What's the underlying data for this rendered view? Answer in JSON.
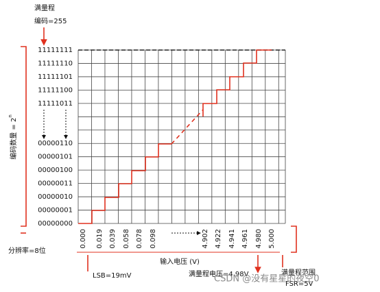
{
  "full_scale": {
    "title": "满量程",
    "code": "编码=255"
  },
  "y_codes_top": [
    "11111111",
    "11111110",
    "11111101",
    "11111100",
    "11111011"
  ],
  "y_codes_bottom": [
    "00000110",
    "00000101",
    "00000100",
    "00000011",
    "00000010",
    "00000001",
    "00000000"
  ],
  "code_count": {
    "label": "编码数量 = 2",
    "exponent": "n"
  },
  "resolution": "分辨率=8位",
  "x_voltages_left": [
    "0.000",
    "0.019",
    "0.039",
    "0.058",
    "0.078",
    "0.098"
  ],
  "x_voltages_right": [
    "4.902",
    "4.922",
    "4.941",
    "4.961",
    "4.980",
    "5.000"
  ],
  "x_axis_label": "输入电压 (V)",
  "lsb": "LSB=19mV",
  "full_scale_voltage": "满量程电压=4.98V",
  "fsr": {
    "title": "满量程范围",
    "value": "FSR=5V"
  },
  "watermark": "CSDN @没有星星的夜空0"
}
